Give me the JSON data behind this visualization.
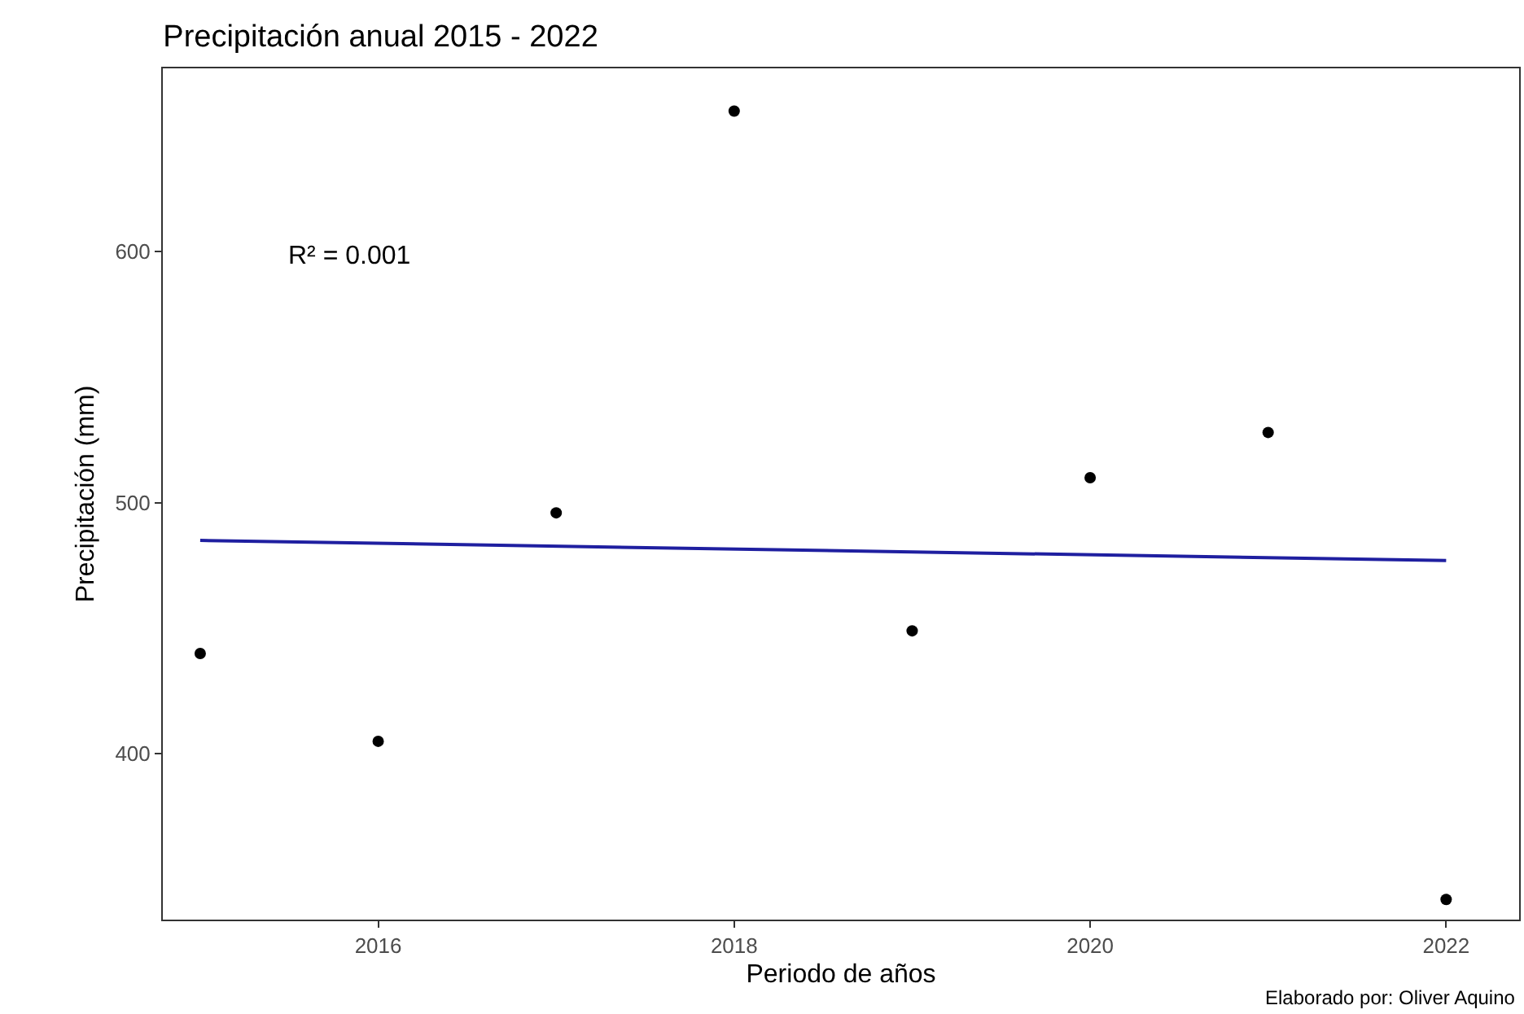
{
  "chart_data": {
    "type": "scatter",
    "title": "Precipitación anual 2015 - 2022",
    "xlabel": "Periodo de años",
    "ylabel": "Precipitación (mm)",
    "x": [
      2015,
      2016,
      2017,
      2018,
      2019,
      2020,
      2021,
      2022
    ],
    "series": [
      {
        "color": "#000000",
        "marker": "circle",
        "values": [
          440,
          405,
          496,
          656,
          449,
          510,
          528,
          342
        ]
      },
      {
        "type": "line",
        "color": "#1f1fa0",
        "x": [
          2015,
          2022
        ],
        "values": [
          485,
          477
        ]
      }
    ],
    "xlim": [
      2014.79,
      2022.41
    ],
    "xticks": [
      2016,
      2018,
      2020,
      2022
    ],
    "ylim": [
      334,
      673
    ],
    "yticks": [
      400,
      500,
      600
    ],
    "grid": false,
    "line_style": "solid",
    "annotations": [
      "R² = 0.001",
      "Elaborado por: Oliver Aquino"
    ]
  }
}
